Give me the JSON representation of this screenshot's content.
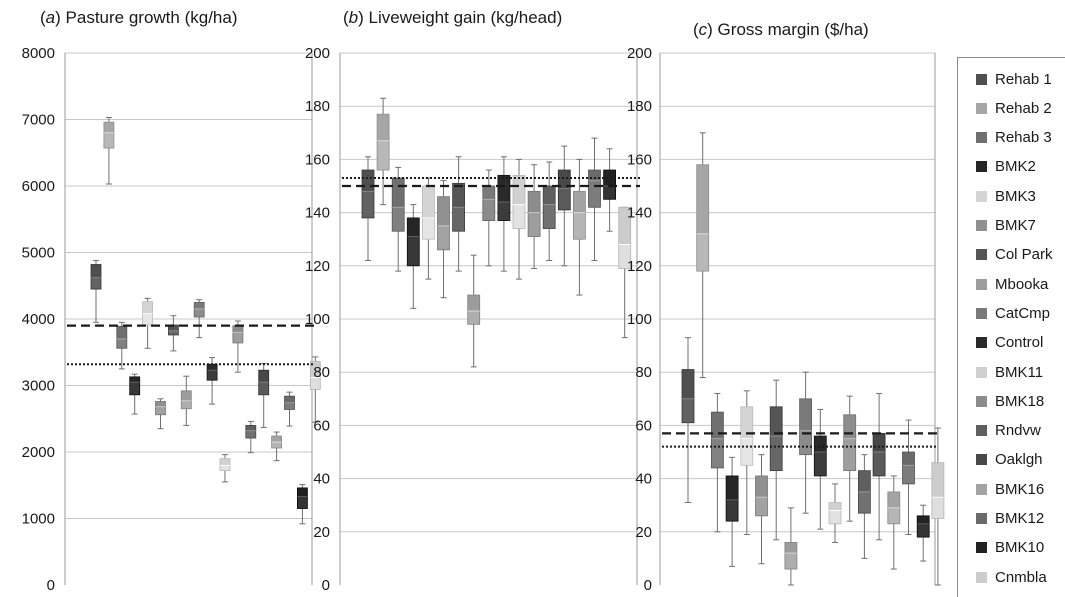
{
  "titles": {
    "a_prefix": "(",
    "a_letter": "a",
    "a_rest": ") Pasture growth (kg/ha)",
    "b_prefix": "(",
    "b_letter": "b",
    "b_rest": ") Liveweight gain (kg/head)",
    "c_prefix": "(",
    "c_letter": "c",
    "c_rest": ") Gross margin ($/ha)"
  },
  "legend": [
    {
      "label": "Rehab 1",
      "color": "#4f4f4f"
    },
    {
      "label": "Rehab 2",
      "color": "#a6a6a6"
    },
    {
      "label": "Rehab 3",
      "color": "#6f6f6f"
    },
    {
      "label": "BMK2",
      "color": "#262626"
    },
    {
      "label": "BMK3",
      "color": "#d4d4d4"
    },
    {
      "label": "BMK7",
      "color": "#909090"
    },
    {
      "label": "Col Park",
      "color": "#555555"
    },
    {
      "label": "Mbooka",
      "color": "#9c9c9c"
    },
    {
      "label": "CatCmp",
      "color": "#7a7a7a"
    },
    {
      "label": "Control",
      "color": "#2a2a2a"
    },
    {
      "label": "BMK11",
      "color": "#d0d0d0"
    },
    {
      "label": "BMK18",
      "color": "#8c8c8c"
    },
    {
      "label": "Rndvw",
      "color": "#5f5f5f"
    },
    {
      "label": "Oaklgh",
      "color": "#484848"
    },
    {
      "label": "BMK16",
      "color": "#a3a3a3"
    },
    {
      "label": "BMK12",
      "color": "#6a6a6a"
    },
    {
      "label": "BMK10",
      "color": "#222222"
    },
    {
      "label": "Cnmbla",
      "color": "#cccccc"
    }
  ],
  "chart_data": [
    {
      "type": "box",
      "title": "(a) Pasture growth (kg/ha)",
      "ylim": [
        0,
        8000
      ],
      "yticks": [
        "0",
        "1000",
        "2000",
        "3000",
        "4000",
        "5000",
        "6000",
        "7000",
        "8000"
      ],
      "grid": true,
      "reference_lines": [
        {
          "style": "dashed",
          "value": 3900
        },
        {
          "style": "dotted",
          "value": 3320
        }
      ],
      "boxes": [
        {
          "series": "Rehab 1",
          "min": 3950,
          "q1": 4450,
          "median": 4620,
          "q3": 4820,
          "max": 4880
        },
        {
          "series": "Rehab 2",
          "min": 6030,
          "q1": 6570,
          "median": 6800,
          "q3": 6960,
          "max": 7030
        },
        {
          "series": "Rehab 3",
          "min": 3250,
          "q1": 3560,
          "median": 3700,
          "q3": 3890,
          "max": 3950
        },
        {
          "series": "BMK2",
          "min": 2570,
          "q1": 2860,
          "median": 3050,
          "q3": 3130,
          "max": 3170
        },
        {
          "series": "BMK3",
          "min": 3560,
          "q1": 3910,
          "median": 4080,
          "q3": 4260,
          "max": 4310
        },
        {
          "series": "BMK7",
          "min": 2350,
          "q1": 2560,
          "median": 2680,
          "q3": 2760,
          "max": 2800
        },
        {
          "series": "Col Park",
          "min": 3520,
          "q1": 3760,
          "median": 3820,
          "q3": 3910,
          "max": 4050
        },
        {
          "series": "Mbooka",
          "min": 2400,
          "q1": 2650,
          "median": 2770,
          "q3": 2920,
          "max": 3140
        },
        {
          "series": "CatCmp",
          "min": 3720,
          "q1": 4030,
          "median": 4150,
          "q3": 4250,
          "max": 4290
        },
        {
          "series": "Control",
          "min": 2720,
          "q1": 3080,
          "median": 3230,
          "q3": 3320,
          "max": 3420
        },
        {
          "series": "BMK11",
          "min": 1550,
          "q1": 1720,
          "median": 1800,
          "q3": 1900,
          "max": 1960
        },
        {
          "series": "BMK18",
          "min": 3200,
          "q1": 3640,
          "median": 3800,
          "q3": 3900,
          "max": 3970
        },
        {
          "series": "Rndvw",
          "min": 1990,
          "q1": 2210,
          "median": 2320,
          "q3": 2400,
          "max": 2460
        },
        {
          "series": "Oaklgh",
          "min": 2370,
          "q1": 2860,
          "median": 3050,
          "q3": 3230,
          "max": 3330
        },
        {
          "series": "BMK16",
          "min": 1870,
          "q1": 2060,
          "median": 2150,
          "q3": 2240,
          "max": 2300
        },
        {
          "series": "BMK12",
          "min": 2390,
          "q1": 2640,
          "median": 2740,
          "q3": 2840,
          "max": 2900
        },
        {
          "series": "BMK10",
          "min": 920,
          "q1": 1150,
          "median": 1330,
          "q3": 1460,
          "max": 1510
        },
        {
          "series": "Cnmbla",
          "min": 2450,
          "q1": 2940,
          "median": 3120,
          "q3": 3360,
          "max": 3430
        }
      ]
    },
    {
      "type": "box",
      "title": "(b) Liveweight gain (kg/head)",
      "ylim": [
        0,
        200
      ],
      "yticks": [
        "0",
        "20",
        "40",
        "60",
        "80",
        "100",
        "120",
        "140",
        "160",
        "180",
        "200"
      ],
      "grid": true,
      "reference_lines": [
        {
          "style": "dashed",
          "value": 150
        },
        {
          "style": "dotted",
          "value": 153
        }
      ],
      "boxes": [
        {
          "series": "Rehab 1",
          "min": 122,
          "q1": 138,
          "median": 148,
          "q3": 156,
          "max": 161
        },
        {
          "series": "Rehab 2",
          "min": 143,
          "q1": 156,
          "median": 167,
          "q3": 177,
          "max": 183
        },
        {
          "series": "Rehab 3",
          "min": 118,
          "q1": 133,
          "median": 142,
          "q3": 153,
          "max": 157
        },
        {
          "series": "BMK2",
          "min": 104,
          "q1": 120,
          "median": 131,
          "q3": 138,
          "max": 143
        },
        {
          "series": "BMK3",
          "min": 115,
          "q1": 130,
          "median": 138,
          "q3": 150,
          "max": 153
        },
        {
          "series": "BMK7",
          "min": 108,
          "q1": 126,
          "median": 135,
          "q3": 146,
          "max": 152
        },
        {
          "series": "Col Park",
          "min": 118,
          "q1": 133,
          "median": 142,
          "q3": 151,
          "max": 161
        },
        {
          "series": "Mbooka",
          "min": 82,
          "q1": 98,
          "median": 103,
          "q3": 109,
          "max": 124
        },
        {
          "series": "CatCmp",
          "min": 120,
          "q1": 137,
          "median": 145,
          "q3": 150,
          "max": 156
        },
        {
          "series": "Control",
          "min": 118,
          "q1": 137,
          "median": 144,
          "q3": 154,
          "max": 161
        },
        {
          "series": "BMK11",
          "min": 115,
          "q1": 134,
          "median": 143,
          "q3": 154,
          "max": 160
        },
        {
          "series": "BMK18",
          "min": 119,
          "q1": 131,
          "median": 140,
          "q3": 148,
          "max": 158
        },
        {
          "series": "Rndvw",
          "min": 122,
          "q1": 134,
          "median": 143,
          "q3": 150,
          "max": 159
        },
        {
          "series": "Oaklgh",
          "min": 120,
          "q1": 141,
          "median": 149,
          "q3": 156,
          "max": 165
        },
        {
          "series": "BMK16",
          "min": 109,
          "q1": 130,
          "median": 140,
          "q3": 148,
          "max": 160
        },
        {
          "series": "BMK12",
          "min": 122,
          "q1": 142,
          "median": 152,
          "q3": 156,
          "max": 168
        },
        {
          "series": "BMK10",
          "min": 133,
          "q1": 145,
          "median": 150,
          "q3": 156,
          "max": 164
        },
        {
          "series": "Cnmbla",
          "min": 93,
          "q1": 119,
          "median": 128,
          "q3": 142,
          "max": 142
        }
      ]
    },
    {
      "type": "box",
      "title": "(c) Gross margin ($/ha)",
      "ylim": [
        0,
        200
      ],
      "yticks": [
        "0",
        "20",
        "40",
        "60",
        "80",
        "100",
        "120",
        "140",
        "160",
        "180",
        "200"
      ],
      "grid": true,
      "reference_lines": [
        {
          "style": "dashed",
          "value": 57
        },
        {
          "style": "dotted",
          "value": 52
        }
      ],
      "boxes": [
        {
          "series": "Rehab 1",
          "min": 31,
          "q1": 61,
          "median": 70,
          "q3": 81,
          "max": 93
        },
        {
          "series": "Rehab 2",
          "min": 78,
          "q1": 118,
          "median": 132,
          "q3": 158,
          "max": 170
        },
        {
          "series": "Rehab 3",
          "min": 20,
          "q1": 44,
          "median": 55,
          "q3": 65,
          "max": 72
        },
        {
          "series": "BMK2",
          "min": 7,
          "q1": 24,
          "median": 32,
          "q3": 41,
          "max": 48
        },
        {
          "series": "BMK3",
          "min": 19,
          "q1": 45,
          "median": 55,
          "q3": 67,
          "max": 73
        },
        {
          "series": "BMK7",
          "min": 8,
          "q1": 26,
          "median": 33,
          "q3": 41,
          "max": 49
        },
        {
          "series": "Col Park",
          "min": 17,
          "q1": 43,
          "median": 56,
          "q3": 67,
          "max": 77
        },
        {
          "series": "Mbooka",
          "min": 0,
          "q1": 6,
          "median": 12,
          "q3": 16,
          "max": 29
        },
        {
          "series": "CatCmp",
          "min": 27,
          "q1": 49,
          "median": 58,
          "q3": 70,
          "max": 80
        },
        {
          "series": "Control",
          "min": 21,
          "q1": 41,
          "median": 50,
          "q3": 56,
          "max": 66
        },
        {
          "series": "BMK11",
          "min": 16,
          "q1": 23,
          "median": 28,
          "q3": 31,
          "max": 38
        },
        {
          "series": "BMK18",
          "min": 24,
          "q1": 43,
          "median": 55,
          "q3": 64,
          "max": 71
        },
        {
          "series": "Rndvw",
          "min": 10,
          "q1": 27,
          "median": 35,
          "q3": 43,
          "max": 49
        },
        {
          "series": "Oaklgh",
          "min": 17,
          "q1": 41,
          "median": 50,
          "q3": 57,
          "max": 72
        },
        {
          "series": "BMK16",
          "min": 6,
          "q1": 23,
          "median": 29,
          "q3": 35,
          "max": 41
        },
        {
          "series": "BMK12",
          "min": 19,
          "q1": 38,
          "median": 45,
          "q3": 50,
          "max": 62
        },
        {
          "series": "BMK10",
          "min": 9,
          "q1": 18,
          "median": 23,
          "q3": 26,
          "max": 30
        },
        {
          "series": "Cnmbla",
          "min": 0,
          "q1": 25,
          "median": 33,
          "q3": 46,
          "max": 59
        }
      ]
    }
  ]
}
